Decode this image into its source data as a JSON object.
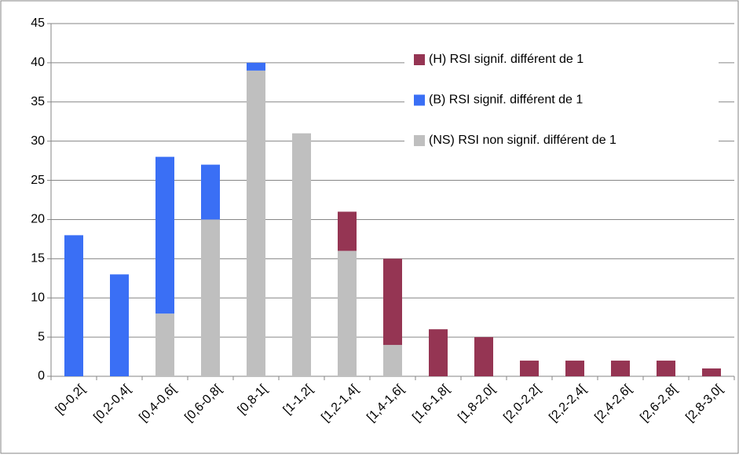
{
  "chart_data": {
    "type": "stacked-bar",
    "categories": [
      "[0-0,2[",
      "[0,2-0,4[",
      "[0,4-0,6[",
      "[0,6-0,8[",
      "[0,8-1[",
      "[1-1,2[",
      "[1,2-1,4[",
      "[1,4-1,6[",
      "[1,6-1,8[",
      "[1,8-2,0[",
      "[2,0-2,2[",
      "[2,2-2,4[",
      "[2,4-2,6[",
      "[2,6-2,8[",
      "[2,8-3,0["
    ],
    "series": [
      {
        "name": "(H) RSI signif. différent de 1",
        "color": "#953553",
        "values": [
          0,
          0,
          0,
          0,
          0,
          0,
          5,
          11,
          6,
          5,
          2,
          2,
          2,
          2,
          1
        ]
      },
      {
        "name": "(B) RSI signif. différent de 1",
        "color": "#3a6ff5",
        "values": [
          18,
          13,
          20,
          7,
          1,
          0,
          0,
          0,
          0,
          0,
          0,
          0,
          0,
          0,
          0
        ]
      },
      {
        "name": "(NS) RSI non signif. différent de 1",
        "color": "#bfbfbf",
        "values": [
          0,
          0,
          8,
          20,
          39,
          31,
          16,
          4,
          0,
          0,
          0,
          0,
          0,
          0,
          0
        ]
      }
    ],
    "ylim": [
      0,
      45
    ],
    "yticks": [
      0,
      5,
      10,
      15,
      20,
      25,
      30,
      35,
      40,
      45
    ],
    "grid": true,
    "legend": "top-right"
  }
}
